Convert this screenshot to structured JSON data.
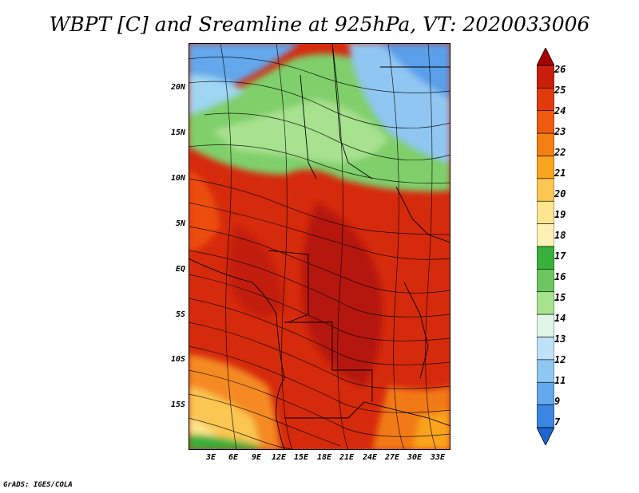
{
  "title": "WBPT [C] and Sreamline at 925hPa, VT: 2020033006",
  "credit": "GrADS: IGES/COLA",
  "map": {
    "lat_ticks": [
      "20N",
      "15N",
      "10N",
      "5N",
      "EQ",
      "5S",
      "10S",
      "15S"
    ],
    "lon_ticks": [
      "3E",
      "6E",
      "9E",
      "12E",
      "15E",
      "18E",
      "21E",
      "24E",
      "27E",
      "30E",
      "33E"
    ]
  },
  "colorbar": {
    "levels": [
      "26",
      "25",
      "24",
      "23",
      "22",
      "21",
      "20",
      "19",
      "18",
      "17",
      "16",
      "15",
      "14",
      "13",
      "12",
      "11",
      "9",
      "7"
    ],
    "colors": [
      "#a50000",
      "#c81e0a",
      "#e13b0c",
      "#ef5a10",
      "#f57f14",
      "#f9a41e",
      "#fbc651",
      "#fde68f",
      "#fdf2b5",
      "#37b03c",
      "#6cc760",
      "#a7e28f",
      "#dff5e8",
      "#bfe2f8",
      "#90c6f2",
      "#63a7ec",
      "#3b86e2",
      "#1e64d2"
    ]
  }
}
